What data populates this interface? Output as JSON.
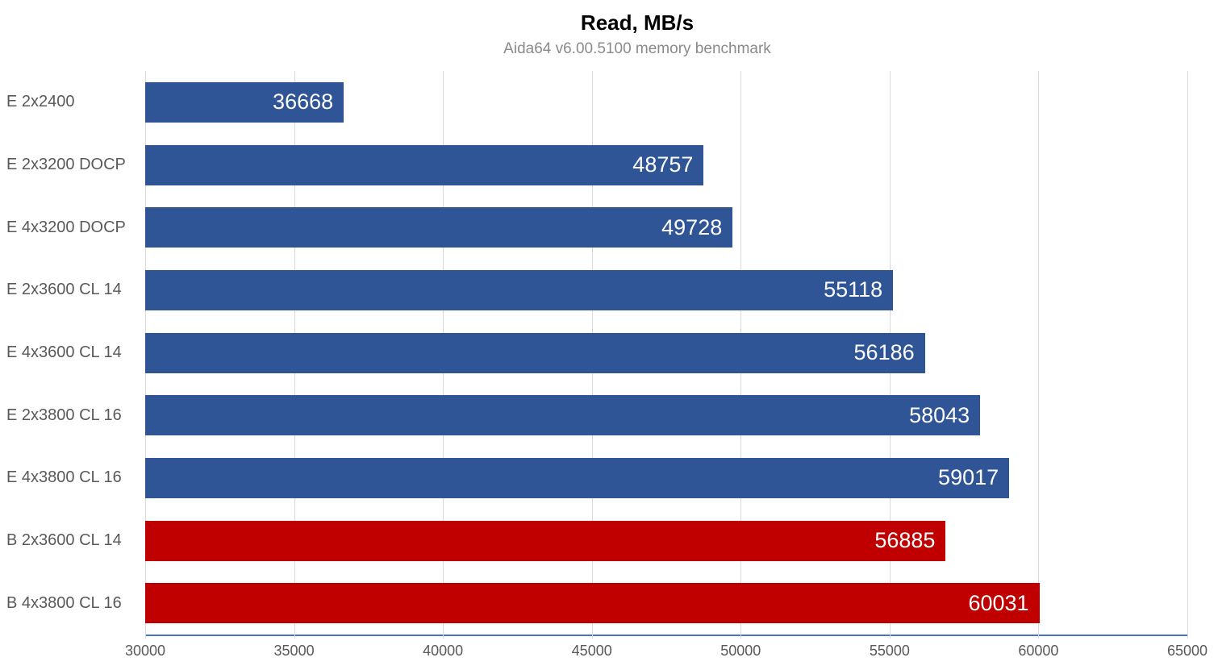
{
  "title": "Read, MB/s",
  "subtitle": "Aida64 v6.00.5100 memory benchmark",
  "colors": {
    "bar_blue": "#2F5597",
    "bar_red": "#C00000",
    "axis_line": "#4472C4",
    "gridline": "#D9D9D9",
    "category_text": "#595959",
    "tick_text": "#595959",
    "value_text": "#FFFFFF",
    "title_text": "#000000",
    "subtitle_text": "#8A8A8A"
  },
  "chart_data": {
    "type": "bar",
    "orientation": "horizontal",
    "title": "Read, MB/s",
    "subtitle": "Aida64 v6.00.5100 memory benchmark",
    "xlabel": "",
    "ylabel": "",
    "xlim": [
      30000,
      65000
    ],
    "xticks": [
      30000,
      35000,
      40000,
      45000,
      50000,
      55000,
      60000,
      65000
    ],
    "grid": true,
    "legend": false,
    "value_labels_position": "inside-end",
    "categories": [
      "E 2x2400",
      "E 2x3200 DOCP",
      "E 4x3200 DOCP",
      "E 2x3600 CL 14",
      "E 4x3600 CL 14",
      "E 2x3800 CL 16",
      "E 4x3800 CL 16",
      "B 2x3600 CL 14",
      "B 4x3800 CL 16"
    ],
    "values": [
      36668,
      48757,
      49728,
      55118,
      56186,
      58043,
      59017,
      56885,
      60031
    ],
    "bar_colors": [
      "bar_blue",
      "bar_blue",
      "bar_blue",
      "bar_blue",
      "bar_blue",
      "bar_blue",
      "bar_blue",
      "bar_red",
      "bar_red"
    ]
  }
}
